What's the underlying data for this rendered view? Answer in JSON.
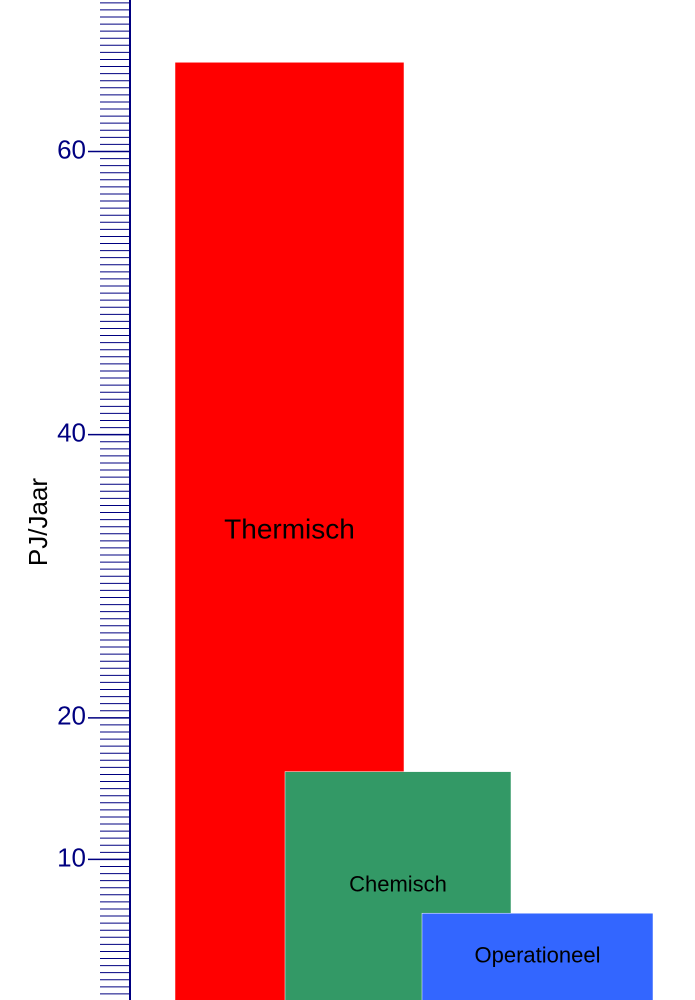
{
  "chart_data": {
    "type": "bar",
    "y_label": "PJ/Jaar",
    "categories": [
      "Thermisch",
      "Chemisch",
      "Operationeel"
    ],
    "values": [
      66.3,
      16.2,
      6.2
    ],
    "colors": [
      "#ff0000",
      "#339966",
      "#3366ff"
    ],
    "ylim": [
      0,
      70.7
    ],
    "yticks": [
      10,
      20,
      40,
      60
    ],
    "minor_tick_step": 0.5,
    "axis_color": "#000080"
  }
}
